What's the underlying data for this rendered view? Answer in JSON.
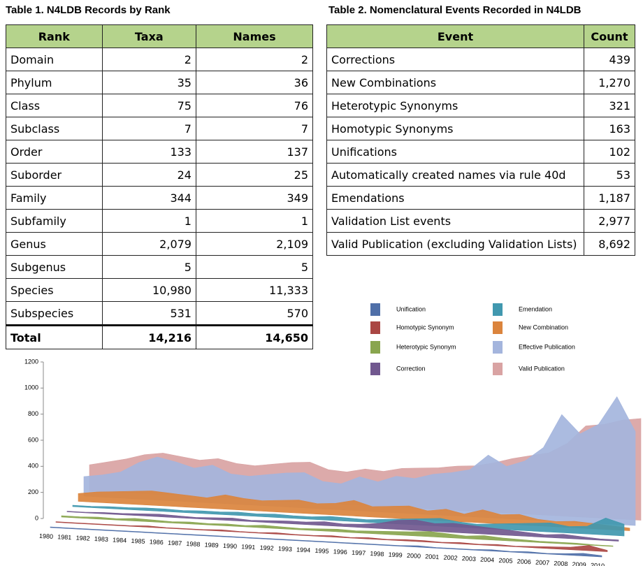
{
  "table1": {
    "title": "Table 1. N4LDB Records by Rank",
    "columns": [
      "Rank",
      "Taxa",
      "Names"
    ],
    "rows": [
      [
        "Domain",
        "2",
        "2"
      ],
      [
        "Phylum",
        "35",
        "36"
      ],
      [
        "Class",
        "75",
        "76"
      ],
      [
        "Subclass",
        "7",
        "7"
      ],
      [
        "Order",
        "133",
        "137"
      ],
      [
        "Suborder",
        "24",
        "25"
      ],
      [
        "Family",
        "344",
        "349"
      ],
      [
        "Subfamily",
        "1",
        "1"
      ],
      [
        "Genus",
        "2,079",
        "2,109"
      ],
      [
        "Subgenus",
        "5",
        "5"
      ],
      [
        "Species",
        "10,980",
        "11,333"
      ],
      [
        "Subspecies",
        "531",
        "570"
      ]
    ],
    "total": [
      "Total",
      "14,216",
      "14,650"
    ]
  },
  "table2": {
    "title": "Table 2. Nomenclatural Events Recorded in N4LDB",
    "columns": [
      "Event",
      "Count"
    ],
    "rows": [
      [
        "Corrections",
        "439"
      ],
      [
        "New Combinations",
        "1,270"
      ],
      [
        "Heterotypic Synonyms",
        "321"
      ],
      [
        "Homotypic Synonyms",
        "163"
      ],
      [
        "Unifications",
        "102"
      ],
      [
        "Automatically created names via rule 40d",
        "53"
      ],
      [
        "Emendations",
        "1,187"
      ],
      [
        "Validation List events",
        "2,977"
      ],
      [
        "Valid Publication (excluding Validation Lists)",
        "8,692"
      ]
    ]
  },
  "chart_data": {
    "type": "area",
    "three_d": true,
    "legend": "upper right",
    "x": [
      1980,
      1981,
      1982,
      1983,
      1984,
      1985,
      1986,
      1987,
      1988,
      1989,
      1990,
      1991,
      1992,
      1993,
      1994,
      1995,
      1996,
      1997,
      1998,
      1999,
      2000,
      2001,
      2002,
      2003,
      2004,
      2005,
      2006,
      2007,
      2008,
      2009,
      2010
    ],
    "xlim": [
      1980,
      2010
    ],
    "ylim": [
      0,
      1200
    ],
    "yticks": [
      0,
      200,
      400,
      600,
      800,
      1000,
      1200
    ],
    "series": [
      {
        "name": "Unification",
        "color": "#4f6fa8",
        "values": [
          5,
          5,
          5,
          5,
          5,
          5,
          5,
          5,
          5,
          5,
          5,
          5,
          5,
          5,
          5,
          5,
          5,
          5,
          5,
          5,
          10,
          5,
          5,
          5,
          10,
          5,
          10,
          5,
          10,
          20,
          10
        ]
      },
      {
        "name": "Homotypic Synonym",
        "color": "#aa4643",
        "values": [
          5,
          5,
          5,
          5,
          5,
          10,
          5,
          5,
          5,
          10,
          5,
          5,
          10,
          5,
          5,
          10,
          5,
          10,
          5,
          10,
          10,
          5,
          10,
          5,
          10,
          5,
          10,
          15,
          20,
          40,
          10
        ]
      },
      {
        "name": "Heterotypic Synonym",
        "color": "#89a54e",
        "values": [
          10,
          10,
          15,
          10,
          20,
          15,
          10,
          15,
          10,
          15,
          10,
          20,
          15,
          10,
          15,
          20,
          15,
          20,
          25,
          30,
          40,
          30,
          20,
          30,
          20,
          15,
          10,
          10,
          10,
          5,
          5
        ]
      },
      {
        "name": "Correction",
        "color": "#71588f",
        "values": [
          5,
          5,
          10,
          10,
          15,
          20,
          15,
          10,
          15,
          20,
          10,
          15,
          20,
          20,
          30,
          20,
          25,
          40,
          70,
          80,
          60,
          70,
          60,
          50,
          40,
          30,
          20,
          30,
          20,
          10,
          10
        ]
      },
      {
        "name": "Emendation",
        "color": "#4198af",
        "values": [
          10,
          10,
          15,
          15,
          20,
          20,
          15,
          20,
          20,
          25,
          20,
          25,
          20,
          20,
          30,
          25,
          20,
          30,
          40,
          50,
          60,
          40,
          30,
          40,
          50,
          60,
          70,
          50,
          60,
          130,
          90
        ]
      },
      {
        "name": "New Combination",
        "color": "#db843d",
        "values": [
          60,
          80,
          90,
          100,
          110,
          100,
          90,
          80,
          110,
          90,
          80,
          90,
          100,
          80,
          90,
          120,
          80,
          90,
          100,
          70,
          90,
          60,
          100,
          70,
          80,
          50,
          40,
          50,
          40,
          30,
          20
        ]
      },
      {
        "name": "Effective Publication",
        "color": "#a4b5dd",
        "values": [
          150,
          170,
          200,
          280,
          330,
          300,
          260,
          290,
          230,
          220,
          240,
          260,
          270,
          210,
          200,
          260,
          230,
          280,
          270,
          310,
          330,
          360,
          480,
          400,
          450,
          560,
          820,
          680,
          760,
          980,
          720
        ]
      },
      {
        "name": "Valid Publication",
        "color": "#d9a3a3",
        "values": [
          200,
          230,
          260,
          300,
          320,
          300,
          280,
          300,
          270,
          260,
          280,
          300,
          310,
          260,
          250,
          280,
          270,
          300,
          310,
          320,
          340,
          350,
          380,
          420,
          450,
          480,
          560,
          700,
          720,
          760,
          780
        ]
      }
    ]
  }
}
